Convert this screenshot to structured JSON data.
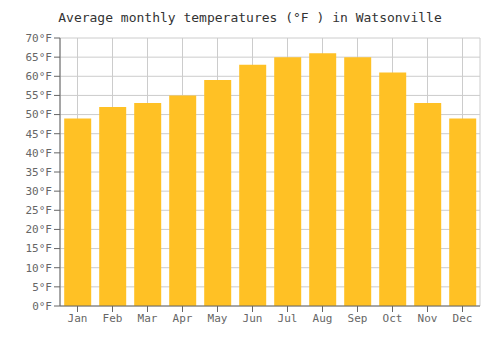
{
  "chart_data": {
    "type": "bar",
    "title": "Average monthly temperatures (°F ) in Watsonville",
    "categories": [
      "Jan",
      "Feb",
      "Mar",
      "Apr",
      "May",
      "Jun",
      "Jul",
      "Aug",
      "Sep",
      "Oct",
      "Nov",
      "Dec"
    ],
    "values": [
      49,
      52,
      53,
      55,
      59,
      63,
      65,
      66,
      65,
      61,
      53,
      49
    ],
    "color": "#FFC125",
    "ylim": [
      0,
      70
    ],
    "yticks": [
      {
        "value": 0,
        "label": "0°F"
      },
      {
        "value": 5,
        "label": "5°F"
      },
      {
        "value": 10,
        "label": "10°F"
      },
      {
        "value": 15,
        "label": "15°F"
      },
      {
        "value": 20,
        "label": "20°F"
      },
      {
        "value": 25,
        "label": "25°F"
      },
      {
        "value": 30,
        "label": "30°F"
      },
      {
        "value": 35,
        "label": "35°F"
      },
      {
        "value": 40,
        "label": "40°F"
      },
      {
        "value": 45,
        "label": "45°F"
      },
      {
        "value": 50,
        "label": "50°F"
      },
      {
        "value": 55,
        "label": "55°F"
      },
      {
        "value": 60,
        "label": "60°F"
      },
      {
        "value": 65,
        "label": "65°F"
      },
      {
        "value": 70,
        "label": "70°F"
      }
    ],
    "grid": true
  }
}
